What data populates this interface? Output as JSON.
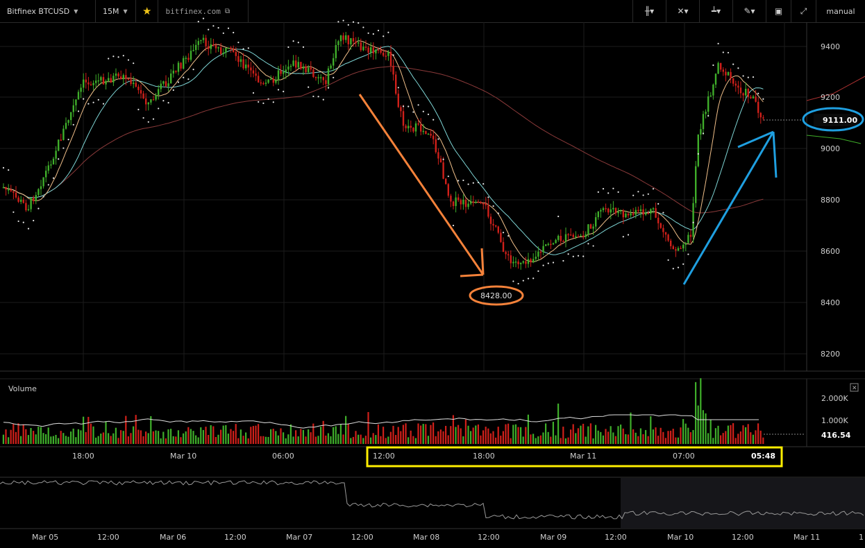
{
  "toolbar": {
    "symbol_label": "Bitfinex BTCUSD",
    "interval_label": "15M",
    "site_label": "bitfinex.com",
    "mode_label": "manual",
    "icons": [
      "candles-icon",
      "compare-icon",
      "indicators-icon",
      "draw-icon",
      "screenshot-icon",
      "fullscreen-icon"
    ]
  },
  "price_axis": {
    "ticks": [
      "9400",
      "9200",
      "9000",
      "8800",
      "8600",
      "8400",
      "8200"
    ],
    "last_price": "9111.00",
    "low_annotation": "8428.00"
  },
  "volume_pane": {
    "title": "Volume",
    "ticks": [
      "2.000K",
      "1.000K"
    ],
    "last_volume": "416.54"
  },
  "time_axis": {
    "labels": [
      "18:00",
      "Mar 10",
      "06:00",
      "12:00",
      "18:00",
      "Mar 11",
      "07:00"
    ],
    "current_time": "05:48"
  },
  "navigator_axis": {
    "labels": [
      "Mar 05",
      "12:00",
      "Mar 06",
      "12:00",
      "Mar 07",
      "12:00",
      "Mar 08",
      "12:00",
      "Mar 09",
      "12:00",
      "Mar 10",
      "12:00",
      "Mar 11",
      "1"
    ]
  },
  "colors": {
    "up": "#3fae2a",
    "down": "#d0201a",
    "orange_annotation": "#f5823a",
    "blue_annotation": "#1f9fe0",
    "yellow_highlight": "#ffee00"
  }
}
